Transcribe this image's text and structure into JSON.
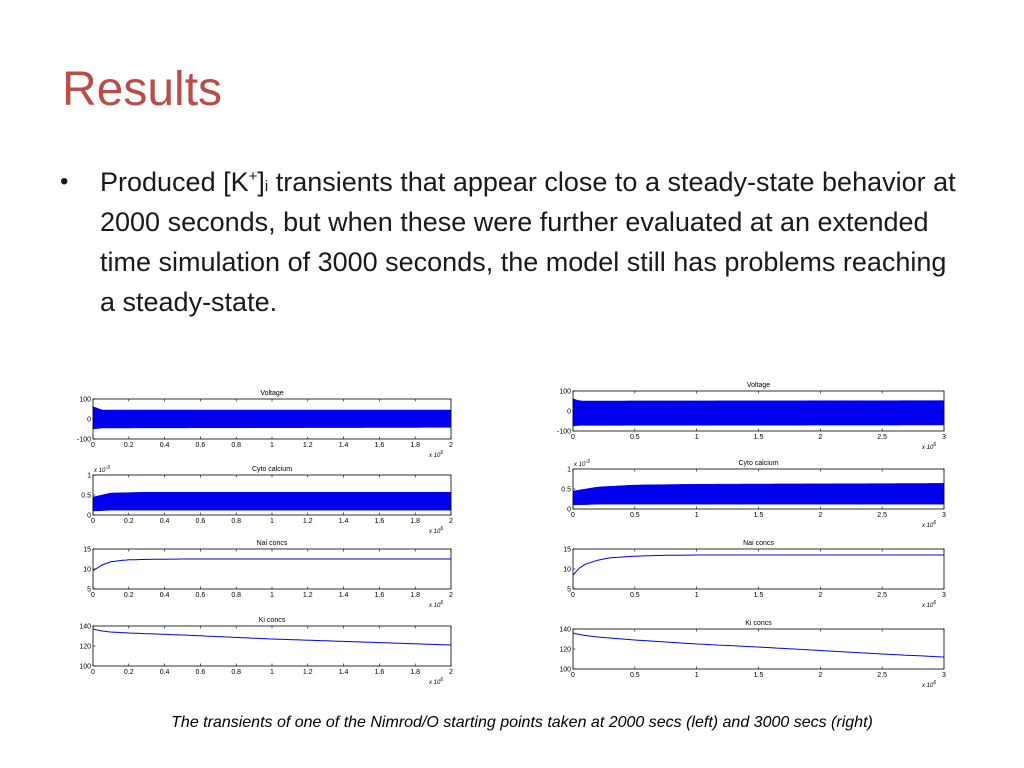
{
  "slide": {
    "title": "Results",
    "bullet": {
      "before": "Produced [K",
      "sup": "+",
      "mid": "]",
      "sub": "i",
      "after": " transients that appear close to a steady-state behavior at 2000 seconds, but when these were further evaluated at an extended time simulation of 3000 seconds, the model still has problems reaching a steady-state."
    },
    "caption": "The transients of one of the Nimrod/O starting points taken at 2000 secs (left) and 3000 secs (right)"
  },
  "colors": {
    "title": "#b94d4a",
    "trace": "#0000ee",
    "axis": "#000000"
  },
  "chart_data": [
    {
      "type": "line",
      "panel": "left",
      "title": "Voltage",
      "xlim": [
        0,
        2
      ],
      "ylim": [
        -100,
        100
      ],
      "xticks": [
        "0",
        "0.2",
        "0.4",
        "0.6",
        "0.8",
        "1",
        "1.2",
        "1.4",
        "1.6",
        "1.8",
        "2"
      ],
      "yticks": [
        "-100",
        "0",
        "100"
      ],
      "multiplier": "x 10",
      "multiplier_exp": "6",
      "band": {
        "x": [
          0,
          0.05,
          2
        ],
        "lo": [
          -50,
          -45,
          -42
        ],
        "hi": [
          62,
          45,
          45
        ]
      }
    },
    {
      "type": "line",
      "panel": "left",
      "title": "Cyto calcium",
      "xlim": [
        0,
        2
      ],
      "ylim": [
        0,
        1
      ],
      "xticks": [
        "0",
        "0.2",
        "0.4",
        "0.6",
        "0.8",
        "1",
        "1.2",
        "1.4",
        "1.6",
        "1.8",
        "2"
      ],
      "yticks": [
        "0",
        "0.5",
        "1"
      ],
      "ylabel_scale": "x 10",
      "ylabel_scale_exp": "-3",
      "multiplier": "x 10",
      "multiplier_exp": "6",
      "band": {
        "x": [
          0,
          0.1,
          0.3,
          2
        ],
        "lo": [
          0.1,
          0.12,
          0.12,
          0.12
        ],
        "hi": [
          0.45,
          0.55,
          0.57,
          0.57
        ]
      }
    },
    {
      "type": "line",
      "panel": "left",
      "title": "Nai concs",
      "xlim": [
        0,
        2
      ],
      "ylim": [
        5,
        15
      ],
      "xticks": [
        "0",
        "0.2",
        "0.4",
        "0.6",
        "0.8",
        "1",
        "1.2",
        "1.4",
        "1.6",
        "1.8",
        "2"
      ],
      "yticks": [
        "5",
        "10",
        "15"
      ],
      "multiplier": "x 10",
      "multiplier_exp": "6",
      "series": {
        "x": [
          0,
          0.05,
          0.1,
          0.15,
          0.2,
          0.3,
          0.5,
          1,
          1.5,
          2
        ],
        "y": [
          9.6,
          11.0,
          11.8,
          12.1,
          12.3,
          12.4,
          12.5,
          12.5,
          12.5,
          12.5
        ]
      }
    },
    {
      "type": "line",
      "panel": "left",
      "title": "Ki concs",
      "xlim": [
        0,
        2
      ],
      "ylim": [
        100,
        140
      ],
      "xticks": [
        "0",
        "0.2",
        "0.4",
        "0.6",
        "0.8",
        "1",
        "1.2",
        "1.4",
        "1.6",
        "1.8",
        "2"
      ],
      "yticks": [
        "100",
        "120",
        "140"
      ],
      "multiplier": "x 10",
      "multiplier_exp": "6",
      "series": {
        "x": [
          0,
          0.05,
          0.1,
          0.2,
          0.5,
          1,
          1.5,
          2
        ],
        "y": [
          137,
          135,
          134,
          133,
          131,
          127,
          124,
          121
        ]
      }
    },
    {
      "type": "line",
      "panel": "right",
      "title": "Voltage",
      "xlim": [
        0,
        3
      ],
      "ylim": [
        -100,
        100
      ],
      "xticks": [
        "0",
        "0.5",
        "1",
        "1.5",
        "2",
        "2.5",
        "3"
      ],
      "yticks": [
        "-100",
        "0",
        "100"
      ],
      "multiplier": "x 10",
      "multiplier_exp": "6",
      "band": {
        "x": [
          0,
          0.05,
          3
        ],
        "lo": [
          -75,
          -72,
          -70
        ],
        "hi": [
          62,
          50,
          52
        ]
      }
    },
    {
      "type": "line",
      "panel": "right",
      "title": "Cyto calcium",
      "xlim": [
        0,
        3
      ],
      "ylim": [
        0,
        1
      ],
      "xticks": [
        "0",
        "0.5",
        "1",
        "1.5",
        "2",
        "2.5",
        "3"
      ],
      "yticks": [
        "0",
        "0.5",
        "1"
      ],
      "ylabel_scale": "x 10",
      "ylabel_scale_exp": "-3",
      "multiplier": "x 10",
      "multiplier_exp": "6",
      "band": {
        "x": [
          0,
          0.2,
          0.5,
          1,
          3
        ],
        "lo": [
          0.1,
          0.12,
          0.12,
          0.12,
          0.12
        ],
        "hi": [
          0.45,
          0.55,
          0.6,
          0.62,
          0.64
        ]
      }
    },
    {
      "type": "line",
      "panel": "right",
      "title": "Nai concs",
      "xlim": [
        0,
        3
      ],
      "ylim": [
        5,
        15
      ],
      "xticks": [
        "0",
        "0.5",
        "1",
        "1.5",
        "2",
        "2.5",
        "3"
      ],
      "yticks": [
        "5",
        "10",
        "15"
      ],
      "multiplier": "x 10",
      "multiplier_exp": "6",
      "series": {
        "x": [
          0,
          0.05,
          0.1,
          0.2,
          0.3,
          0.5,
          0.7,
          1,
          2,
          3
        ],
        "y": [
          8.5,
          10.2,
          11.2,
          12.2,
          12.8,
          13.2,
          13.4,
          13.5,
          13.5,
          13.5
        ]
      }
    },
    {
      "type": "line",
      "panel": "right",
      "title": "Ki concs",
      "xlim": [
        0,
        3
      ],
      "ylim": [
        100,
        140
      ],
      "xticks": [
        "0",
        "0.5",
        "1",
        "1.5",
        "2",
        "2.5",
        "3"
      ],
      "yticks": [
        "100",
        "120",
        "140"
      ],
      "multiplier": "x 10",
      "multiplier_exp": "6",
      "series": {
        "x": [
          0,
          0.05,
          0.1,
          0.2,
          0.5,
          1,
          1.5,
          2,
          2.5,
          3
        ],
        "y": [
          136,
          134.5,
          133.5,
          132,
          129,
          125,
          122,
          118.5,
          115,
          112
        ]
      }
    }
  ]
}
